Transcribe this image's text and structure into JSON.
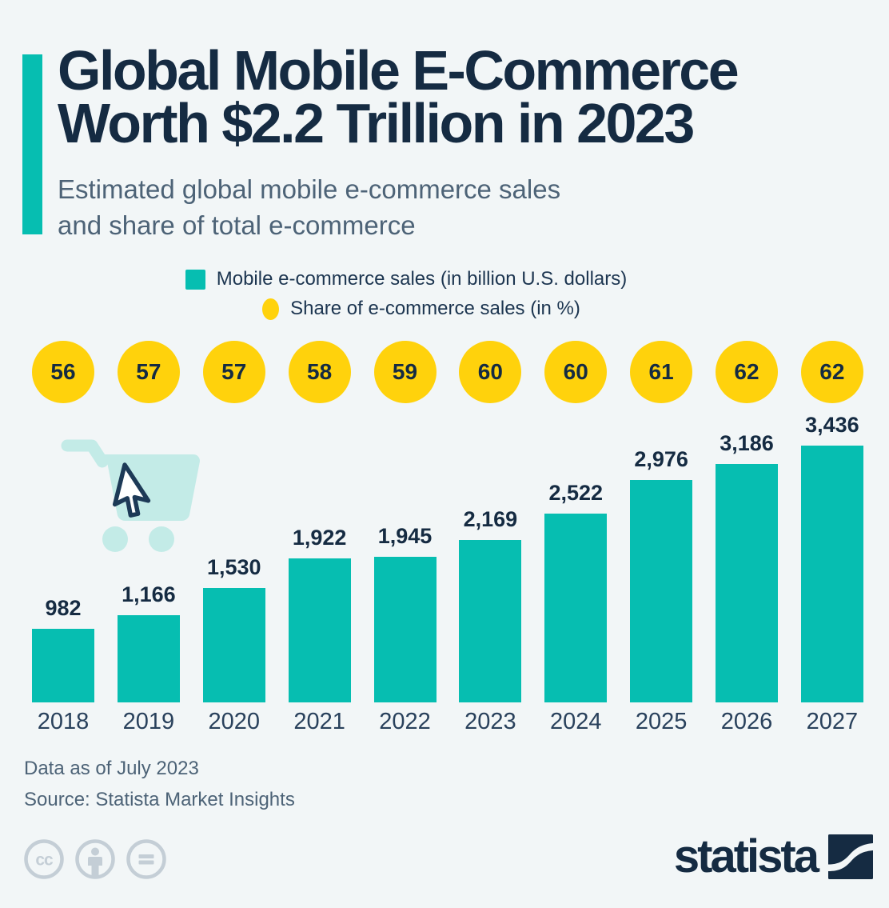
{
  "colors": {
    "background": "#f2f6f7",
    "teal": "#06beb1",
    "light_teal": "#c3ebe7",
    "yellow": "#ffd20c",
    "navy": "#152b42",
    "text_secondary": "#4d6377",
    "icon_gray": "#c4ced6"
  },
  "header": {
    "title_line1": "Global Mobile E-Commerce",
    "title_line2": "Worth $2.2 Trillion in 2023",
    "subtitle_line1": "Estimated global mobile e-commerce sales",
    "subtitle_line2": "and share of total e-commerce"
  },
  "legend": {
    "sales": "Mobile e-commerce sales (in billion U.S. dollars)",
    "share": "Share of e-commerce sales (in %)"
  },
  "chart_data": {
    "type": "bar",
    "title": "Global Mobile E-Commerce Worth $2.2 Trillion in 2023",
    "subtitle": "Estimated global mobile e-commerce sales and share of total e-commerce",
    "categories": [
      "2018",
      "2019",
      "2020",
      "2021",
      "2022",
      "2023",
      "2024",
      "2025",
      "2026",
      "2027"
    ],
    "series": [
      {
        "name": "Mobile e-commerce sales (in billion U.S. dollars)",
        "type": "bar",
        "color": "#06beb1",
        "values": [
          982,
          1166,
          1530,
          1922,
          1945,
          2169,
          2522,
          2976,
          3186,
          3436
        ],
        "labels": [
          "982",
          "1,166",
          "1,530",
          "1,922",
          "1,945",
          "2,169",
          "2,522",
          "2,976",
          "3,186",
          "3,436"
        ]
      },
      {
        "name": "Share of e-commerce sales (in %)",
        "type": "circle-markers",
        "color": "#ffd20c",
        "values": [
          56,
          57,
          57,
          58,
          59,
          60,
          60,
          61,
          62,
          62
        ]
      }
    ],
    "ylim": [
      0,
      3600
    ],
    "grid": false,
    "legend_position": "top",
    "value_labels_shown": true
  },
  "footer": {
    "data_note": "Data as of July 2023",
    "source": "Source: Statista Market Insights"
  },
  "license": {
    "cc_glyph": "cc"
  },
  "branding": {
    "wordmark": "statista"
  },
  "icons": {
    "cart": "shopping-cart-icon",
    "cursor": "cursor-arrow-icon",
    "license": [
      "cc-icon",
      "cc-by-icon",
      "cc-nd-icon"
    ],
    "brand": "statista-logo-icon"
  }
}
